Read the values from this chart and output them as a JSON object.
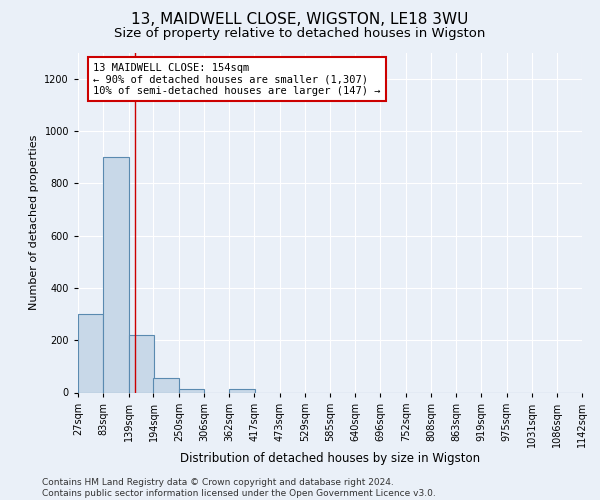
{
  "title1": "13, MAIDWELL CLOSE, WIGSTON, LE18 3WU",
  "title2": "Size of property relative to detached houses in Wigston",
  "xlabel": "Distribution of detached houses by size in Wigston",
  "ylabel": "Number of detached properties",
  "bar_edges": [
    27,
    83,
    139,
    194,
    250,
    306,
    362,
    417,
    473,
    529,
    585,
    640,
    696,
    752,
    808,
    863,
    919,
    975,
    1031,
    1086,
    1142
  ],
  "bar_heights": [
    300,
    900,
    220,
    55,
    13,
    0,
    13,
    0,
    0,
    0,
    0,
    0,
    0,
    0,
    0,
    0,
    0,
    0,
    0,
    0
  ],
  "bar_color": "#c8d8e8",
  "bar_edge_color": "#5a8ab0",
  "property_line_x": 154,
  "property_line_color": "#cc0000",
  "annotation_line1": "13 MAIDWELL CLOSE: 154sqm",
  "annotation_line2": "← 90% of detached houses are smaller (1,307)",
  "annotation_line3": "10% of semi-detached houses are larger (147) →",
  "annotation_box_color": "#ffffff",
  "annotation_box_edge_color": "#cc0000",
  "ylim": [
    0,
    1300
  ],
  "yticks": [
    0,
    200,
    400,
    600,
    800,
    1000,
    1200
  ],
  "xlim_left": 27,
  "bg_color": "#eaf0f8",
  "plot_bg_color": "#eaf0f8",
  "footer_line1": "Contains HM Land Registry data © Crown copyright and database right 2024.",
  "footer_line2": "Contains public sector information licensed under the Open Government Licence v3.0.",
  "title1_fontsize": 11,
  "title2_fontsize": 9.5,
  "xlabel_fontsize": 8.5,
  "ylabel_fontsize": 8,
  "tick_fontsize": 7,
  "annotation_fontsize": 7.5,
  "footer_fontsize": 6.5
}
